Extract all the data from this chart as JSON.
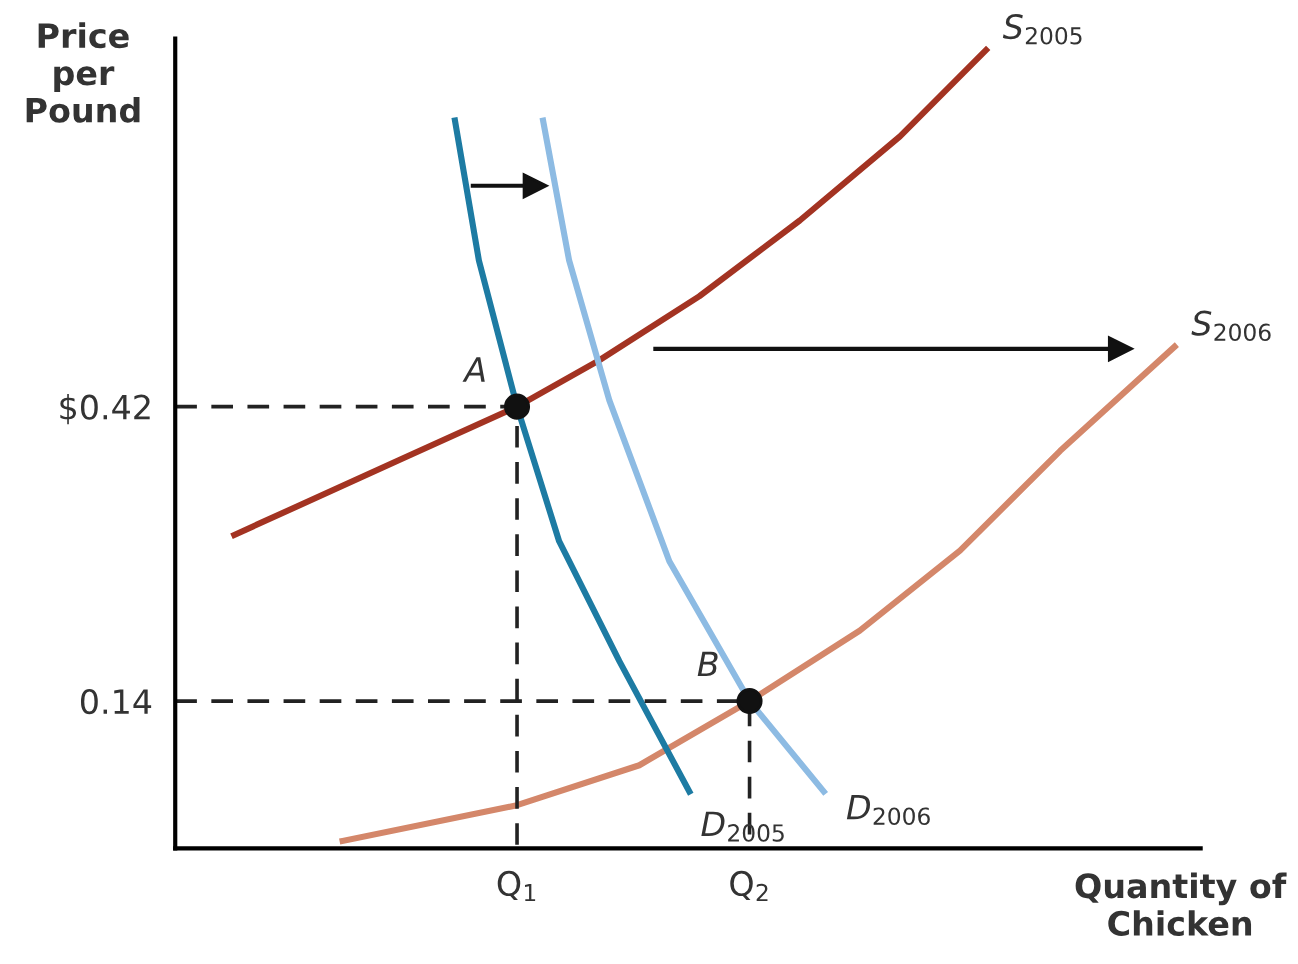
{
  "chart_data": {
    "type": "line",
    "xlabel": "Quantity of\nChicken",
    "ylabel": "Price\nper\nPound",
    "xlim": [
      -0.47,
      3.94
    ],
    "ylim": [
      0,
      0.77
    ],
    "xticks": [
      {
        "value": 1,
        "label": "Q$_{1}$"
      },
      {
        "value": 2,
        "label": "Q$_{2}$"
      }
    ],
    "yticks": [
      {
        "value": 0.42,
        "label": "$0.42"
      },
      0.14
    ],
    "grid": false,
    "legend": false,
    "marker": "none",
    "line_style": "solid",
    "series": [
      {
        "name": "S$_{2005}$",
        "color": "#a33322",
        "x": [
          -0.216,
          0.491,
          1,
          1.353,
          1.784,
          2.216,
          2.647,
          3.017
        ],
        "values": [
          0.298,
          0.369,
          0.42,
          0.464,
          0.525,
          0.597,
          0.677,
          0.759
        ]
      },
      {
        "name": "S$_{2006}$",
        "color": "#d4876a",
        "x": [
          0.25,
          1,
          1.526,
          2,
          2.474,
          2.905,
          3.336,
          3.828
        ],
        "values": [
          0.007,
          0.041,
          0.079,
          0.14,
          0.207,
          0.283,
          0.378,
          0.477
        ]
      },
      {
        "name": "D$_{2005}$",
        "color": "#1d7ba3",
        "x": [
          0.733,
          0.836,
          1,
          1.181,
          1.44,
          1.741
        ],
        "values": [
          0.692,
          0.559,
          0.42,
          0.292,
          0.178,
          0.054
        ]
      },
      {
        "name": "D$_{2006}$",
        "color": "#8dbbe3",
        "x": [
          1.112,
          1.224,
          1.397,
          1.655,
          2,
          2.319
        ],
        "values": [
          0.692,
          0.559,
          0.426,
          0.273,
          0.14,
          0.054
        ]
      },
      {
        "color": "#222222",
        "line_style": "dashed",
        "x": [
          -0.47,
          1,
          1
        ],
        "values": [
          0.42,
          0.42,
          0
        ]
      },
      {
        "color": "#222222",
        "line_style": "dashed",
        "x": [
          -0.47,
          2,
          2
        ],
        "values": [
          0.14,
          0.14,
          0
        ]
      },
      {
        "type": "scatter",
        "color": "#111111",
        "marker": "circle",
        "x": [
          1,
          2
        ],
        "values": [
          0.42,
          0.14
        ]
      },
      {
        "type": "line",
        "marker": "triangle",
        "color": "#111111",
        "x": [
          0.81,
          1.078
        ],
        "values": [
          0.63,
          0.63
        ]
      },
      {
        "type": "line",
        "marker": "triangle",
        "color": "#111111",
        "x": [
          1.595,
          3.595
        ],
        "values": [
          0.475,
          0.475
        ]
      }
    ],
    "annotations": [
      {
        "text": "A",
        "x": 1,
        "y": 0.42
      },
      {
        "text": "B",
        "x": 2,
        "y": 0.14
      }
    ]
  }
}
